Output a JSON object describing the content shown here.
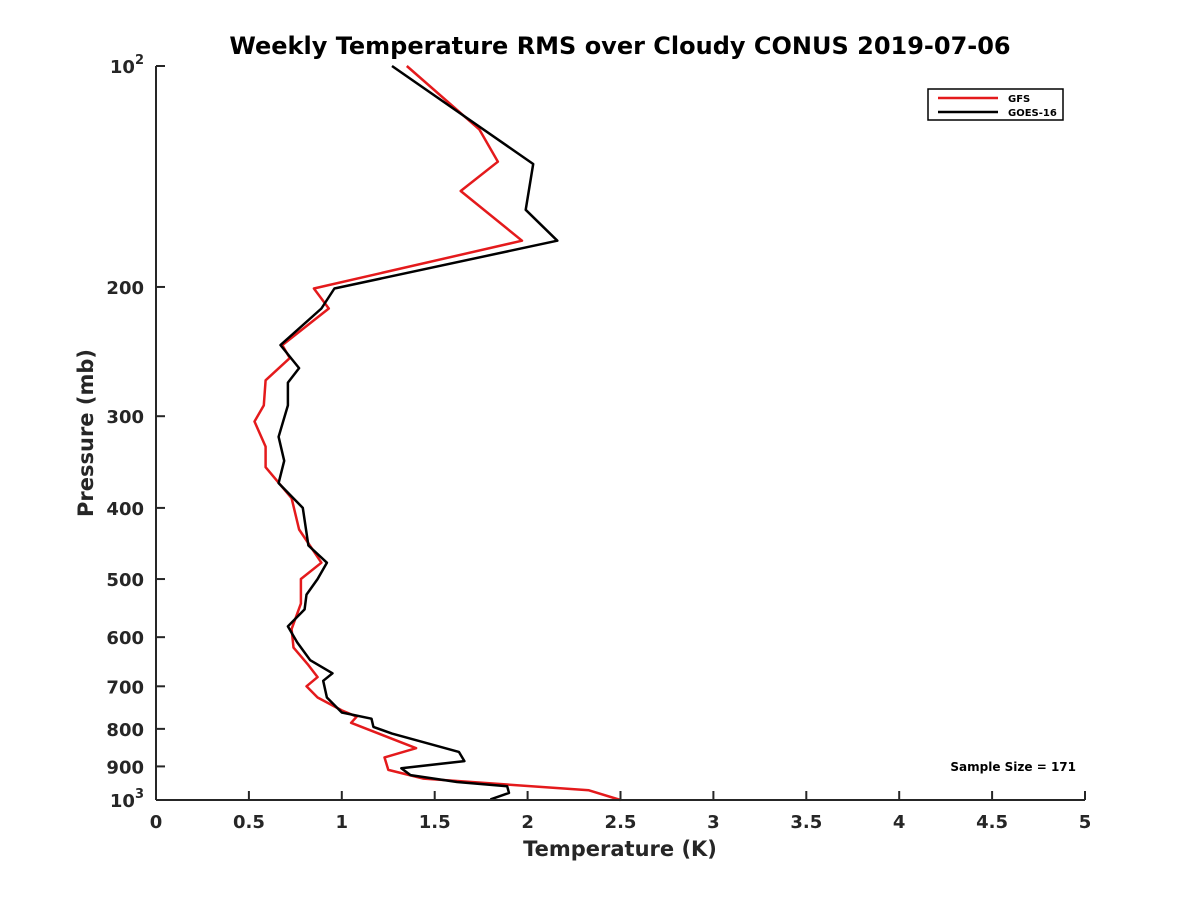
{
  "chart_data": {
    "type": "line",
    "title": "Weekly Temperature RMS over Cloudy CONUS 2019-07-06",
    "xlabel": "Temperature (K)",
    "ylabel": "Pressure (mb)",
    "xlim": [
      0,
      5
    ],
    "ylim": [
      100,
      1000
    ],
    "yscale": "log",
    "yreversed": true,
    "x_ticks": [
      0,
      0.5,
      1,
      1.5,
      2,
      2.5,
      3,
      3.5,
      4,
      4.5,
      5
    ],
    "x_tick_labels": [
      "0",
      "0.5",
      "1",
      "1.5",
      "2",
      "2.5",
      "3",
      "3.5",
      "4",
      "4.5",
      "5"
    ],
    "y_ticks": [
      {
        "value": 100,
        "base": "10",
        "exp": "2"
      },
      {
        "value": 200,
        "label": "200"
      },
      {
        "value": 300,
        "label": "300"
      },
      {
        "value": 400,
        "label": "400"
      },
      {
        "value": 500,
        "label": "500"
      },
      {
        "value": 600,
        "label": "600"
      },
      {
        "value": 700,
        "label": "700"
      },
      {
        "value": 800,
        "label": "800"
      },
      {
        "value": 900,
        "label": "900"
      },
      {
        "value": 1000,
        "base": "10",
        "exp": "3"
      }
    ],
    "legend": {
      "placement": "top-right"
    },
    "annotation": "Sample Size = 171",
    "series": [
      {
        "name": "GFS",
        "color": "#e41a1c",
        "x": [
          1.35,
          1.74,
          1.84,
          1.64,
          1.97,
          0.85,
          0.93,
          0.68,
          0.72,
          0.59,
          0.58,
          0.53,
          0.59,
          0.59,
          0.73,
          0.77,
          0.89,
          0.78,
          0.78,
          0.73,
          0.74,
          0.82,
          0.87,
          0.81,
          0.87,
          1.0,
          1.08,
          1.05,
          1.4,
          1.23,
          1.25,
          1.44,
          2.33,
          2.5
        ],
        "y": [
          100,
          122,
          135,
          148,
          173,
          201,
          214,
          240,
          250,
          268,
          290,
          305,
          330,
          352,
          388,
          428,
          475,
          500,
          540,
          585,
          620,
          655,
          680,
          700,
          725,
          755,
          770,
          785,
          850,
          875,
          910,
          935,
          970,
          1000
        ]
      },
      {
        "name": "GOES-16",
        "color": "#000000",
        "x": [
          1.27,
          2.03,
          1.99,
          2.16,
          0.96,
          0.89,
          0.67,
          0.77,
          0.71,
          0.71,
          0.66,
          0.69,
          0.66,
          0.79,
          0.82,
          0.92,
          0.87,
          0.81,
          0.8,
          0.71,
          0.76,
          0.83,
          0.95,
          0.9,
          0.92,
          1.0,
          1.16,
          1.17,
          1.27,
          1.63,
          1.66,
          1.32,
          1.37,
          1.62,
          1.89,
          1.9,
          1.8
        ],
        "y": [
          100,
          136,
          157,
          173,
          201,
          214,
          240,
          258,
          270,
          290,
          320,
          345,
          370,
          400,
          450,
          475,
          500,
          525,
          550,
          580,
          610,
          645,
          672,
          688,
          725,
          760,
          775,
          795,
          812,
          860,
          885,
          905,
          925,
          945,
          958,
          978,
          998
        ]
      }
    ]
  }
}
